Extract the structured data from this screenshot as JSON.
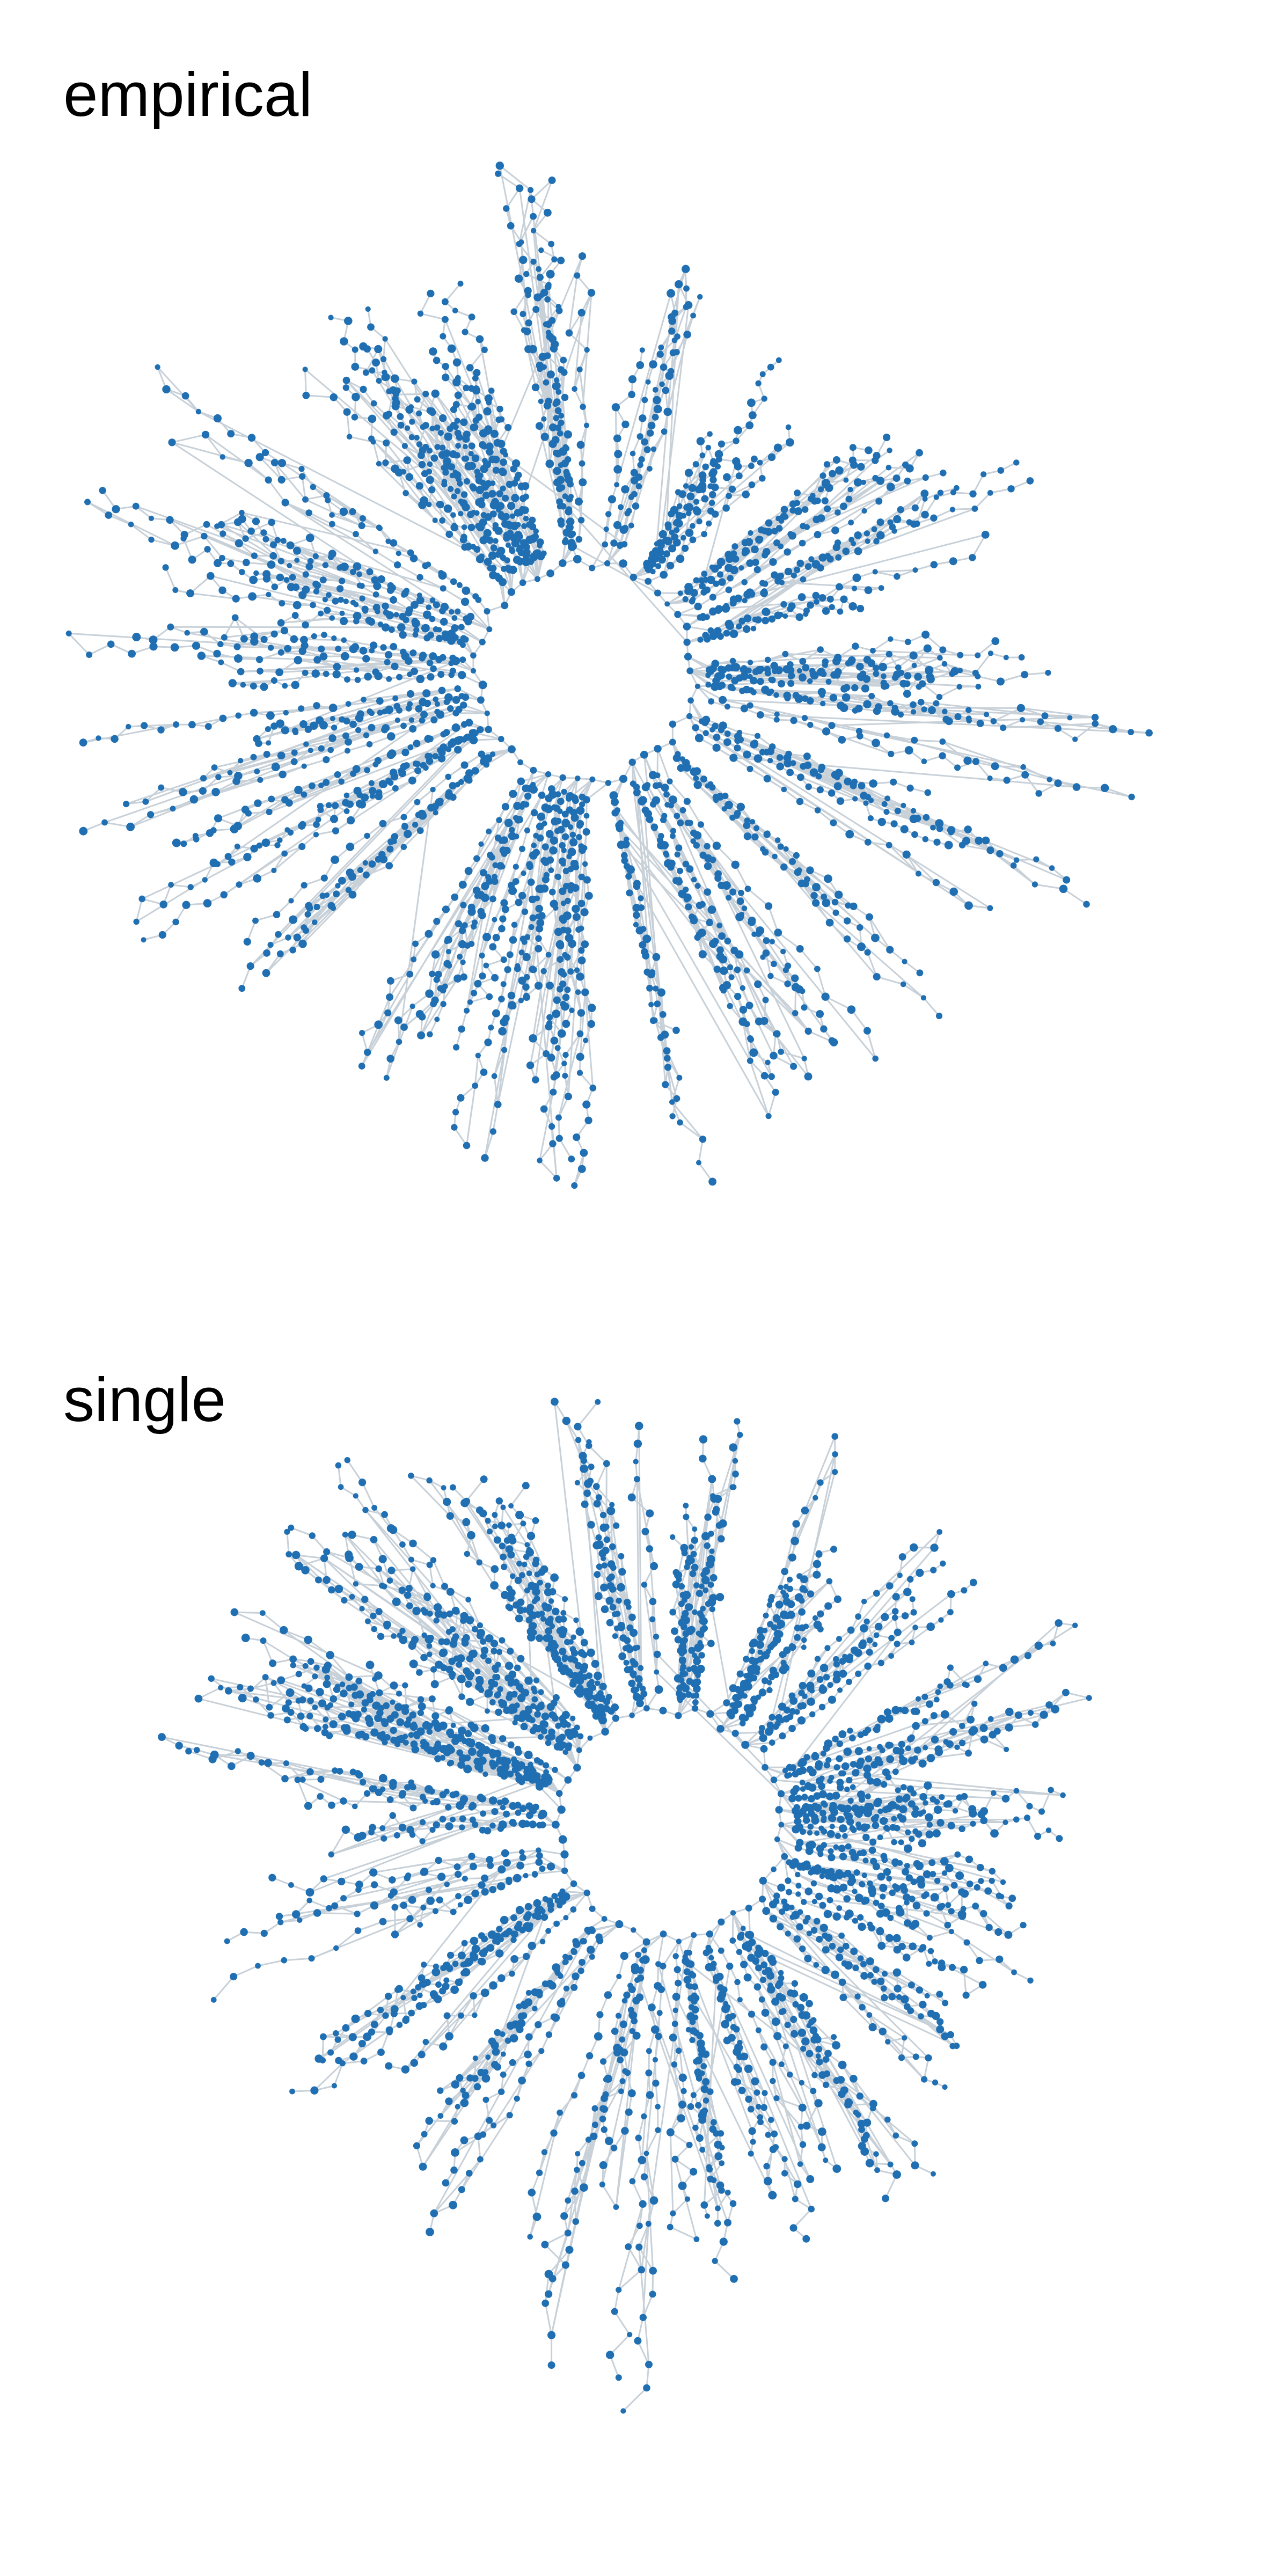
{
  "panels": [
    {
      "title": "empirical"
    },
    {
      "title": "single"
    }
  ],
  "colors": {
    "node": "#1f6fb2",
    "edge": "#c8d0d8",
    "background": "#ffffff"
  }
}
